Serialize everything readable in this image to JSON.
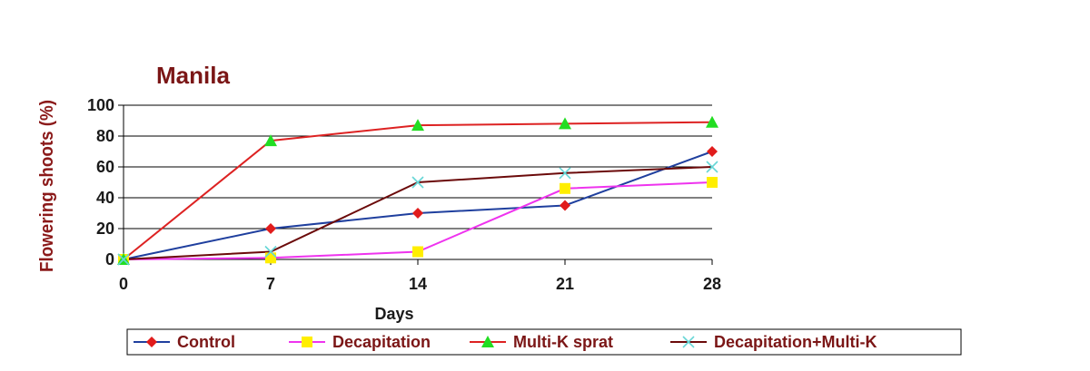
{
  "chart_data": {
    "type": "line",
    "title": "Manila",
    "xlabel": "Days",
    "ylabel": "Flowering shoots (%)",
    "x": [
      0,
      7,
      14,
      21,
      28
    ],
    "x_tick_labels": [
      "0",
      "7",
      "14",
      "21",
      "28"
    ],
    "y_ticks": [
      0,
      20,
      40,
      60,
      80,
      100
    ],
    "ylim": [
      0,
      100
    ],
    "grid": "horizontal",
    "legend_position": "bottom",
    "series": [
      {
        "name": "Control",
        "values": [
          0,
          20,
          30,
          35,
          70
        ],
        "color": "#1f3f9e",
        "marker": "diamond",
        "marker_color": "#e11c1c"
      },
      {
        "name": "Decapitation",
        "values": [
          0,
          1,
          5,
          46,
          50
        ],
        "color": "#ee33ee",
        "marker": "square",
        "marker_color": "#ffee00"
      },
      {
        "name": "Multi-K sprat",
        "values": [
          0,
          77,
          87,
          88,
          89
        ],
        "color": "#dd2222",
        "marker": "triangle",
        "marker_color": "#22dd22"
      },
      {
        "name": "Decapitation+Multi-K",
        "values": [
          0,
          5,
          50,
          56,
          60
        ],
        "color": "#6b0a0a",
        "marker": "x",
        "marker_color": "#66d6d6"
      }
    ]
  }
}
